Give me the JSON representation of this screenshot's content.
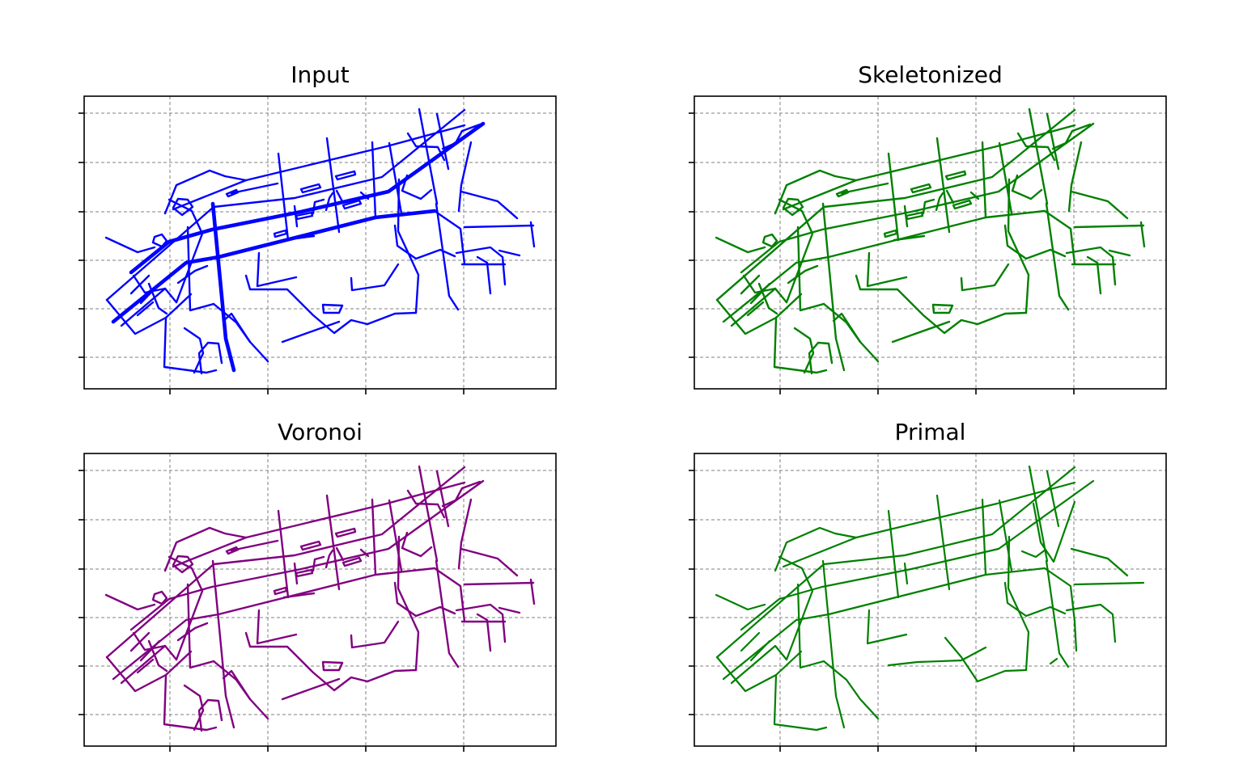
{
  "chart_data": [
    {
      "type": "network-plot",
      "title": "Input",
      "color": "#0000ff",
      "grid": true,
      "tick_labels": false,
      "variant": "input"
    },
    {
      "type": "network-plot",
      "title": "Skeletonized",
      "color": "#008000",
      "grid": true,
      "tick_labels": false,
      "variant": "skeleton"
    },
    {
      "type": "network-plot",
      "title": "Voronoi",
      "color": "#800080",
      "grid": true,
      "tick_labels": false,
      "variant": "skeleton"
    },
    {
      "type": "network-plot",
      "title": "Primal",
      "color": "#008000",
      "grid": true,
      "tick_labels": false,
      "variant": "primal"
    }
  ]
}
